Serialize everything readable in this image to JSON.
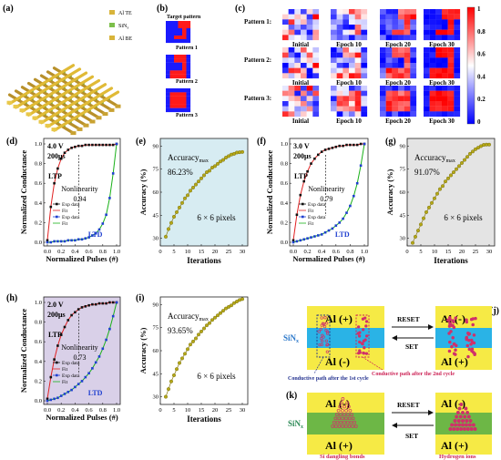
{
  "labels": {
    "a": "(a)",
    "b": "(b)",
    "c": "(c)",
    "d": "(d)",
    "e": "(e)",
    "f": "(f)",
    "g": "(g)",
    "h": "(h)",
    "i": "(i)",
    "j": "(j)",
    "k": "(k)"
  },
  "panel_a": {
    "legend": [
      "Al TE",
      "SiN",
      "x",
      "Al BE"
    ]
  },
  "panel_b": {
    "title": "Target pattern",
    "patterns": [
      "Pattern 1",
      "Pattern 2",
      "Pattern 3"
    ]
  },
  "panel_c": {
    "rows": [
      "Pattern 1:",
      "Pattern 2:",
      "Pattern 3:"
    ],
    "cols": [
      "Initial",
      "Epoch 10",
      "Epoch 20",
      "Epoch 30"
    ],
    "colorbar": [
      "1",
      "0.8",
      "0.6",
      "0.4",
      "0.2",
      "0"
    ]
  },
  "conductance_panels": [
    {
      "id": "d",
      "voltage": "4.0 V",
      "pulse": "200μs",
      "nonlinearity_label": "Nonlinearity",
      "nonlinearity": "0.94"
    },
    {
      "id": "f",
      "voltage": "3.0 V",
      "pulse": "200μs",
      "nonlinearity_label": "Nonlinearity",
      "nonlinearity": "0.79"
    },
    {
      "id": "h",
      "voltage": "2.0 V",
      "pulse": "200μs",
      "nonlinearity_label": "Nonlinearity",
      "nonlinearity": "0.73"
    }
  ],
  "conductance_common": {
    "ylabel": "Normalized Conductance",
    "xlabel": "Normalized Pulses (#)",
    "ltp": "LTP",
    "ltd": "LTD",
    "legend": [
      "Exp data",
      "Fit",
      "Exp data",
      "Fit"
    ],
    "xticks": [
      "0.0",
      "0.2",
      "0.4",
      "0.6",
      "0.8",
      "1.0"
    ],
    "yticks": [
      "0.0",
      "0.2",
      "0.4",
      "0.6",
      "0.8",
      "1.0"
    ]
  },
  "accuracy_panels": [
    {
      "id": "e",
      "acc_label": "Accuracy",
      "acc_sub": "max",
      "acc_value": "86.23%",
      "pixels": "6 × 6 pixels",
      "yticks": [
        "30",
        "45",
        "60",
        "75",
        "90"
      ]
    },
    {
      "id": "g",
      "acc_label": "Accuracy",
      "acc_sub": "max",
      "acc_value": "91.07%",
      "pixels": "6 × 6 pixels",
      "yticks": [
        "30",
        "45",
        "60",
        "75",
        "90"
      ]
    },
    {
      "id": "i",
      "acc_label": "Accuracy",
      "acc_sub": "max",
      "acc_value": "93.65%",
      "pixels": "6 × 6 pixels",
      "yticks": [
        "30",
        "45",
        "60",
        "75",
        "90"
      ]
    }
  ],
  "accuracy_common": {
    "ylabel": "Accuracy (%)",
    "xlabel": "Iterations",
    "xticks": [
      "0",
      "5",
      "10",
      "15",
      "20",
      "25",
      "30"
    ]
  },
  "panel_j": {
    "top_left": "Al (+)",
    "bottom_left": "Al (-)",
    "top_right": "Al (-)",
    "bottom_right": "Al (+)",
    "reset": "RESET",
    "set": "SET",
    "sin": "SiN",
    "sin_sub": "x",
    "path1": "Conductive path after the 1st cycle",
    "path2": "Conductive path after the 2nd cycle"
  },
  "panel_k": {
    "top_left": "Al (-)",
    "bottom_left": "Al (+)",
    "top_right": "Al (-)",
    "bottom_right": "Al (+)",
    "reset": "RESET",
    "set": "SET",
    "sin": "SiN",
    "sin_sub": "x",
    "dangling": "Si dangling bonds",
    "hydrogen": "Hydrogen ions"
  },
  "chart_data": [
    {
      "type": "line",
      "panel": "d",
      "xlabel": "Normalized Pulses (#)",
      "ylabel": "Normalized Conductance",
      "xlim": [
        0,
        1
      ],
      "ylim": [
        0,
        1
      ],
      "series": [
        {
          "name": "Exp data",
          "x": [
            0,
            0.05,
            0.1,
            0.15,
            0.2,
            0.25,
            0.3,
            0.35,
            0.4,
            0.45,
            0.5,
            0.55,
            0.6,
            0.65,
            0.7,
            0.75,
            0.8,
            0.85,
            0.9,
            0.95,
            1.0
          ],
          "y": [
            0.02,
            0.36,
            0.6,
            0.75,
            0.85,
            0.91,
            0.94,
            0.96,
            0.97,
            0.98,
            0.98,
            0.99,
            0.99,
            0.99,
            0.99,
            0.99,
            0.99,
            0.99,
            0.99,
            0.99,
            1.0
          ]
        },
        {
          "name": "Exp data",
          "x": [
            0,
            0.05,
            0.1,
            0.15,
            0.2,
            0.25,
            0.3,
            0.35,
            0.4,
            0.45,
            0.5,
            0.55,
            0.6,
            0.65,
            0.7,
            0.75,
            0.8,
            0.85,
            0.9,
            0.95,
            1.0
          ],
          "y": [
            0.0,
            0.0,
            0.01,
            0.01,
            0.01,
            0.01,
            0.02,
            0.02,
            0.02,
            0.03,
            0.03,
            0.04,
            0.05,
            0.07,
            0.09,
            0.13,
            0.19,
            0.28,
            0.45,
            0.7,
            1.0
          ]
        }
      ]
    },
    {
      "type": "line",
      "panel": "f",
      "xlabel": "Normalized Pulses (#)",
      "ylabel": "Normalized Conductance",
      "xlim": [
        0,
        1
      ],
      "ylim": [
        0,
        1
      ],
      "series": [
        {
          "name": "Exp data",
          "x": [
            0,
            0.05,
            0.1,
            0.15,
            0.2,
            0.25,
            0.3,
            0.35,
            0.4,
            0.45,
            0.5,
            0.55,
            0.6,
            0.65,
            0.7,
            0.75,
            0.8,
            0.85,
            0.9,
            0.95,
            1.0
          ],
          "y": [
            0.02,
            0.28,
            0.48,
            0.62,
            0.72,
            0.8,
            0.85,
            0.89,
            0.92,
            0.94,
            0.95,
            0.96,
            0.97,
            0.98,
            0.98,
            0.99,
            0.99,
            0.99,
            0.99,
            1.0,
            1.0
          ]
        },
        {
          "name": "Exp data",
          "x": [
            0,
            0.05,
            0.1,
            0.15,
            0.2,
            0.25,
            0.3,
            0.35,
            0.4,
            0.45,
            0.5,
            0.55,
            0.6,
            0.65,
            0.7,
            0.75,
            0.8,
            0.85,
            0.9,
            0.95,
            1.0
          ],
          "y": [
            0.0,
            0.01,
            0.02,
            0.03,
            0.04,
            0.05,
            0.06,
            0.07,
            0.08,
            0.1,
            0.12,
            0.14,
            0.17,
            0.2,
            0.24,
            0.3,
            0.37,
            0.47,
            0.6,
            0.78,
            1.0
          ]
        }
      ]
    },
    {
      "type": "line",
      "panel": "h",
      "xlabel": "Normalized Pulses (#)",
      "ylabel": "Normalized Conductance",
      "xlim": [
        0,
        1
      ],
      "ylim": [
        0,
        1
      ],
      "series": [
        {
          "name": "Exp data",
          "x": [
            0,
            0.05,
            0.1,
            0.15,
            0.2,
            0.25,
            0.3,
            0.35,
            0.4,
            0.45,
            0.5,
            0.55,
            0.6,
            0.65,
            0.7,
            0.75,
            0.8,
            0.85,
            0.9,
            0.95,
            1.0
          ],
          "y": [
            0.02,
            0.24,
            0.42,
            0.56,
            0.67,
            0.75,
            0.82,
            0.87,
            0.9,
            0.93,
            0.95,
            0.96,
            0.97,
            0.98,
            0.98,
            0.99,
            0.99,
            0.99,
            1.0,
            1.0,
            1.0
          ]
        },
        {
          "name": "Exp data",
          "x": [
            0,
            0.05,
            0.1,
            0.15,
            0.2,
            0.25,
            0.3,
            0.35,
            0.4,
            0.45,
            0.5,
            0.55,
            0.6,
            0.65,
            0.7,
            0.75,
            0.8,
            0.85,
            0.9,
            0.95,
            1.0
          ],
          "y": [
            0.0,
            0.01,
            0.02,
            0.03,
            0.05,
            0.07,
            0.09,
            0.11,
            0.14,
            0.17,
            0.2,
            0.24,
            0.28,
            0.33,
            0.39,
            0.45,
            0.53,
            0.62,
            0.73,
            0.86,
            1.0
          ]
        }
      ]
    },
    {
      "type": "scatter",
      "panel": "e",
      "xlabel": "Iterations",
      "ylabel": "Accuracy (%)",
      "xlim": [
        0,
        32
      ],
      "ylim": [
        25,
        95
      ],
      "x": [
        2,
        3,
        4,
        5,
        6,
        7,
        8,
        9,
        10,
        11,
        12,
        13,
        14,
        15,
        16,
        17,
        18,
        19,
        20,
        21,
        22,
        23,
        24,
        25,
        26,
        27,
        28,
        29,
        30
      ],
      "y": [
        31,
        36,
        40,
        44,
        47,
        50,
        53,
        56,
        58,
        61,
        63,
        65,
        67,
        69,
        71,
        73,
        74,
        76,
        77,
        78.5,
        80,
        81,
        82.5,
        83.5,
        84.5,
        85,
        85.8,
        86,
        86.2
      ]
    },
    {
      "type": "scatter",
      "panel": "g",
      "xlabel": "Iterations",
      "ylabel": "Accuracy (%)",
      "xlim": [
        0,
        32
      ],
      "ylim": [
        25,
        95
      ],
      "x": [
        2,
        3,
        4,
        5,
        6,
        7,
        8,
        9,
        10,
        11,
        12,
        13,
        14,
        15,
        16,
        17,
        18,
        19,
        20,
        21,
        22,
        23,
        24,
        25,
        26,
        27,
        28,
        29,
        30
      ],
      "y": [
        27,
        31,
        35,
        39,
        43,
        47,
        50,
        53,
        56,
        59,
        62,
        64,
        67,
        69,
        71,
        73,
        75,
        77,
        79,
        81,
        83,
        85,
        86.5,
        88,
        89,
        90,
        90.8,
        91,
        91
      ]
    },
    {
      "type": "scatter",
      "panel": "i",
      "xlabel": "Iterations",
      "ylabel": "Accuracy (%)",
      "xlim": [
        0,
        32
      ],
      "ylim": [
        25,
        95
      ],
      "x": [
        2,
        3,
        4,
        5,
        6,
        7,
        8,
        9,
        10,
        11,
        12,
        13,
        14,
        15,
        16,
        17,
        18,
        19,
        20,
        21,
        22,
        23,
        24,
        25,
        26,
        27,
        28,
        29,
        30
      ],
      "y": [
        30,
        35,
        40,
        44,
        48,
        52,
        55,
        58,
        61,
        64,
        66,
        68,
        70.5,
        72.5,
        74.5,
        76.5,
        78,
        80,
        81.5,
        83,
        84.5,
        86,
        87.5,
        88.5,
        89.5,
        91,
        92,
        93,
        93.6
      ]
    }
  ]
}
